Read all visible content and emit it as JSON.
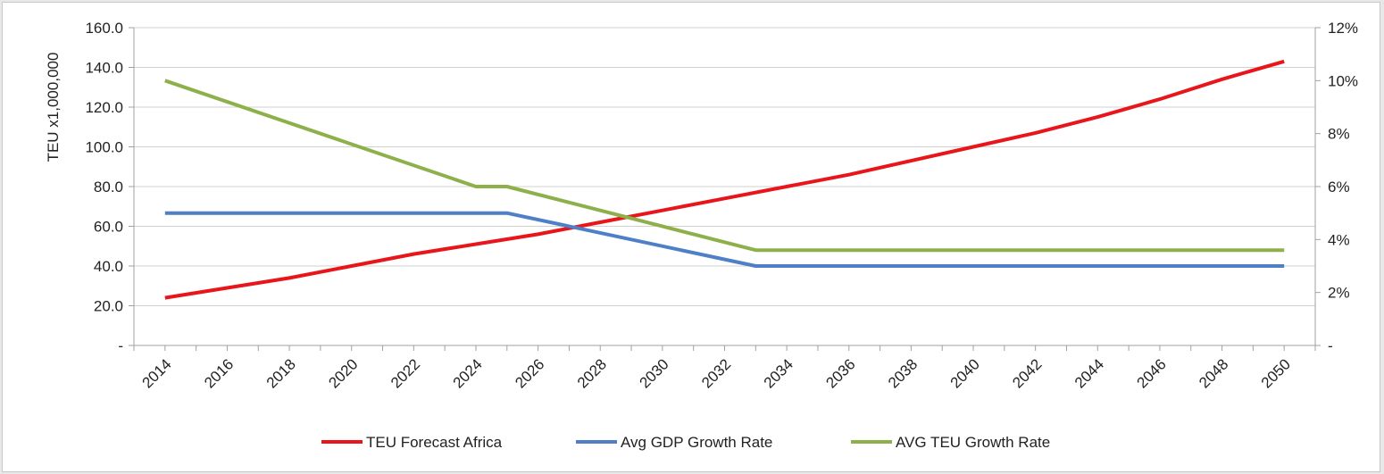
{
  "chart_data": {
    "type": "line",
    "title": "",
    "xlabel": "",
    "ylabel": "TEU x1,000,000",
    "ylim": [
      0,
      160
    ],
    "y2lim": [
      0,
      12
    ],
    "grid": true,
    "legend_position": "bottom",
    "x_tick_labels": [
      "2014",
      "2016",
      "2018",
      "2020",
      "2022",
      "2024",
      "2026",
      "2028",
      "2030",
      "2032",
      "2034",
      "2036",
      "2038",
      "2040",
      "2042",
      "2044",
      "2046",
      "2048",
      "2050"
    ],
    "y_tick_labels": [
      "-",
      "20.0",
      "40.0",
      "60.0",
      "80.0",
      "100.0",
      "120.0",
      "140.0",
      "160.0"
    ],
    "y2_tick_labels": [
      "-",
      "2%",
      "4%",
      "6%",
      "8%",
      "10%",
      "12%"
    ],
    "series": [
      {
        "name": "TEU Forecast Africa",
        "axis": "left",
        "color": "#e8161b",
        "x": [
          2014,
          2016,
          2018,
          2020,
          2022,
          2024,
          2026,
          2028,
          2030,
          2032,
          2034,
          2036,
          2038,
          2040,
          2042,
          2044,
          2046,
          2048,
          2050
        ],
        "values": [
          24,
          29,
          34,
          40,
          46,
          51,
          56,
          62,
          68,
          74,
          80,
          86,
          93,
          100,
          107,
          115,
          124,
          134,
          143
        ]
      },
      {
        "name": "Avg GDP Growth Rate",
        "axis": "right",
        "color": "#4f7fc6",
        "x": [
          2014,
          2025,
          2033,
          2050
        ],
        "values": [
          5.0,
          5.0,
          3.0,
          3.0
        ]
      },
      {
        "name": "AVG TEU Growth Rate",
        "axis": "right",
        "color": "#8db04b",
        "x": [
          2014,
          2024,
          2025,
          2033,
          2050
        ],
        "values": [
          10.0,
          6.0,
          6.0,
          3.6,
          3.6
        ]
      }
    ]
  }
}
